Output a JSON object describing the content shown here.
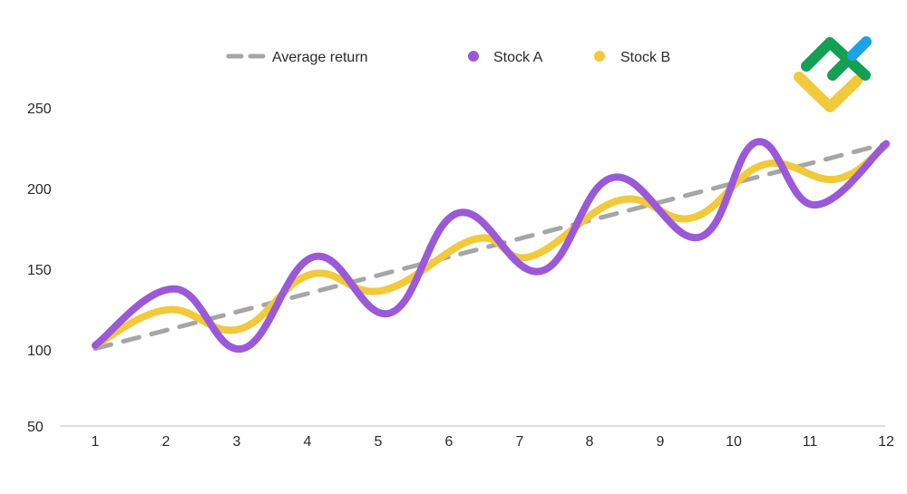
{
  "colors": {
    "average": "#a6a6a6",
    "stock_a": "#9b59d9",
    "stock_b": "#f2c93a",
    "axis": "#bdbdbd",
    "text": "#2a2a2a",
    "logo_green": "#13a052",
    "logo_blue": "#1ba3e6",
    "logo_yellow": "#f2c93a"
  },
  "chart_data": {
    "type": "line",
    "title": "",
    "xlabel": "",
    "ylabel": "",
    "x": [
      1,
      2,
      3,
      4,
      5,
      6,
      7,
      8,
      9,
      10,
      11,
      12
    ],
    "ylim": [
      50,
      250
    ],
    "yticks": [
      50,
      100,
      150,
      200,
      250
    ],
    "grid": false,
    "legend_position": "top",
    "series": [
      {
        "key": "average",
        "name": "Average return",
        "style": "dashed",
        "points": [
          [
            1,
            98
          ],
          [
            12,
            225
          ]
        ]
      },
      {
        "key": "stock_a",
        "name": "Stock A",
        "style": "solid",
        "points": [
          [
            1,
            100
          ],
          [
            2.1,
            135
          ],
          [
            3.05,
            98
          ],
          [
            4.05,
            155
          ],
          [
            5.1,
            120
          ],
          [
            6.05,
            182
          ],
          [
            7.2,
            146
          ],
          [
            8.2,
            204
          ],
          [
            9.4,
            167
          ],
          [
            10.2,
            226
          ],
          [
            11,
            187
          ],
          [
            12,
            225
          ]
        ]
      },
      {
        "key": "stock_b",
        "name": "Stock B",
        "style": "solid",
        "points": [
          [
            1,
            100
          ],
          [
            2,
            122
          ],
          [
            3,
            110
          ],
          [
            4,
            144
          ],
          [
            5,
            134
          ],
          [
            6.3,
            166
          ],
          [
            7.05,
            155
          ],
          [
            8.3,
            190
          ],
          [
            9.3,
            179
          ],
          [
            10.3,
            212
          ],
          [
            11.3,
            203
          ],
          [
            12,
            224
          ]
        ]
      }
    ]
  }
}
